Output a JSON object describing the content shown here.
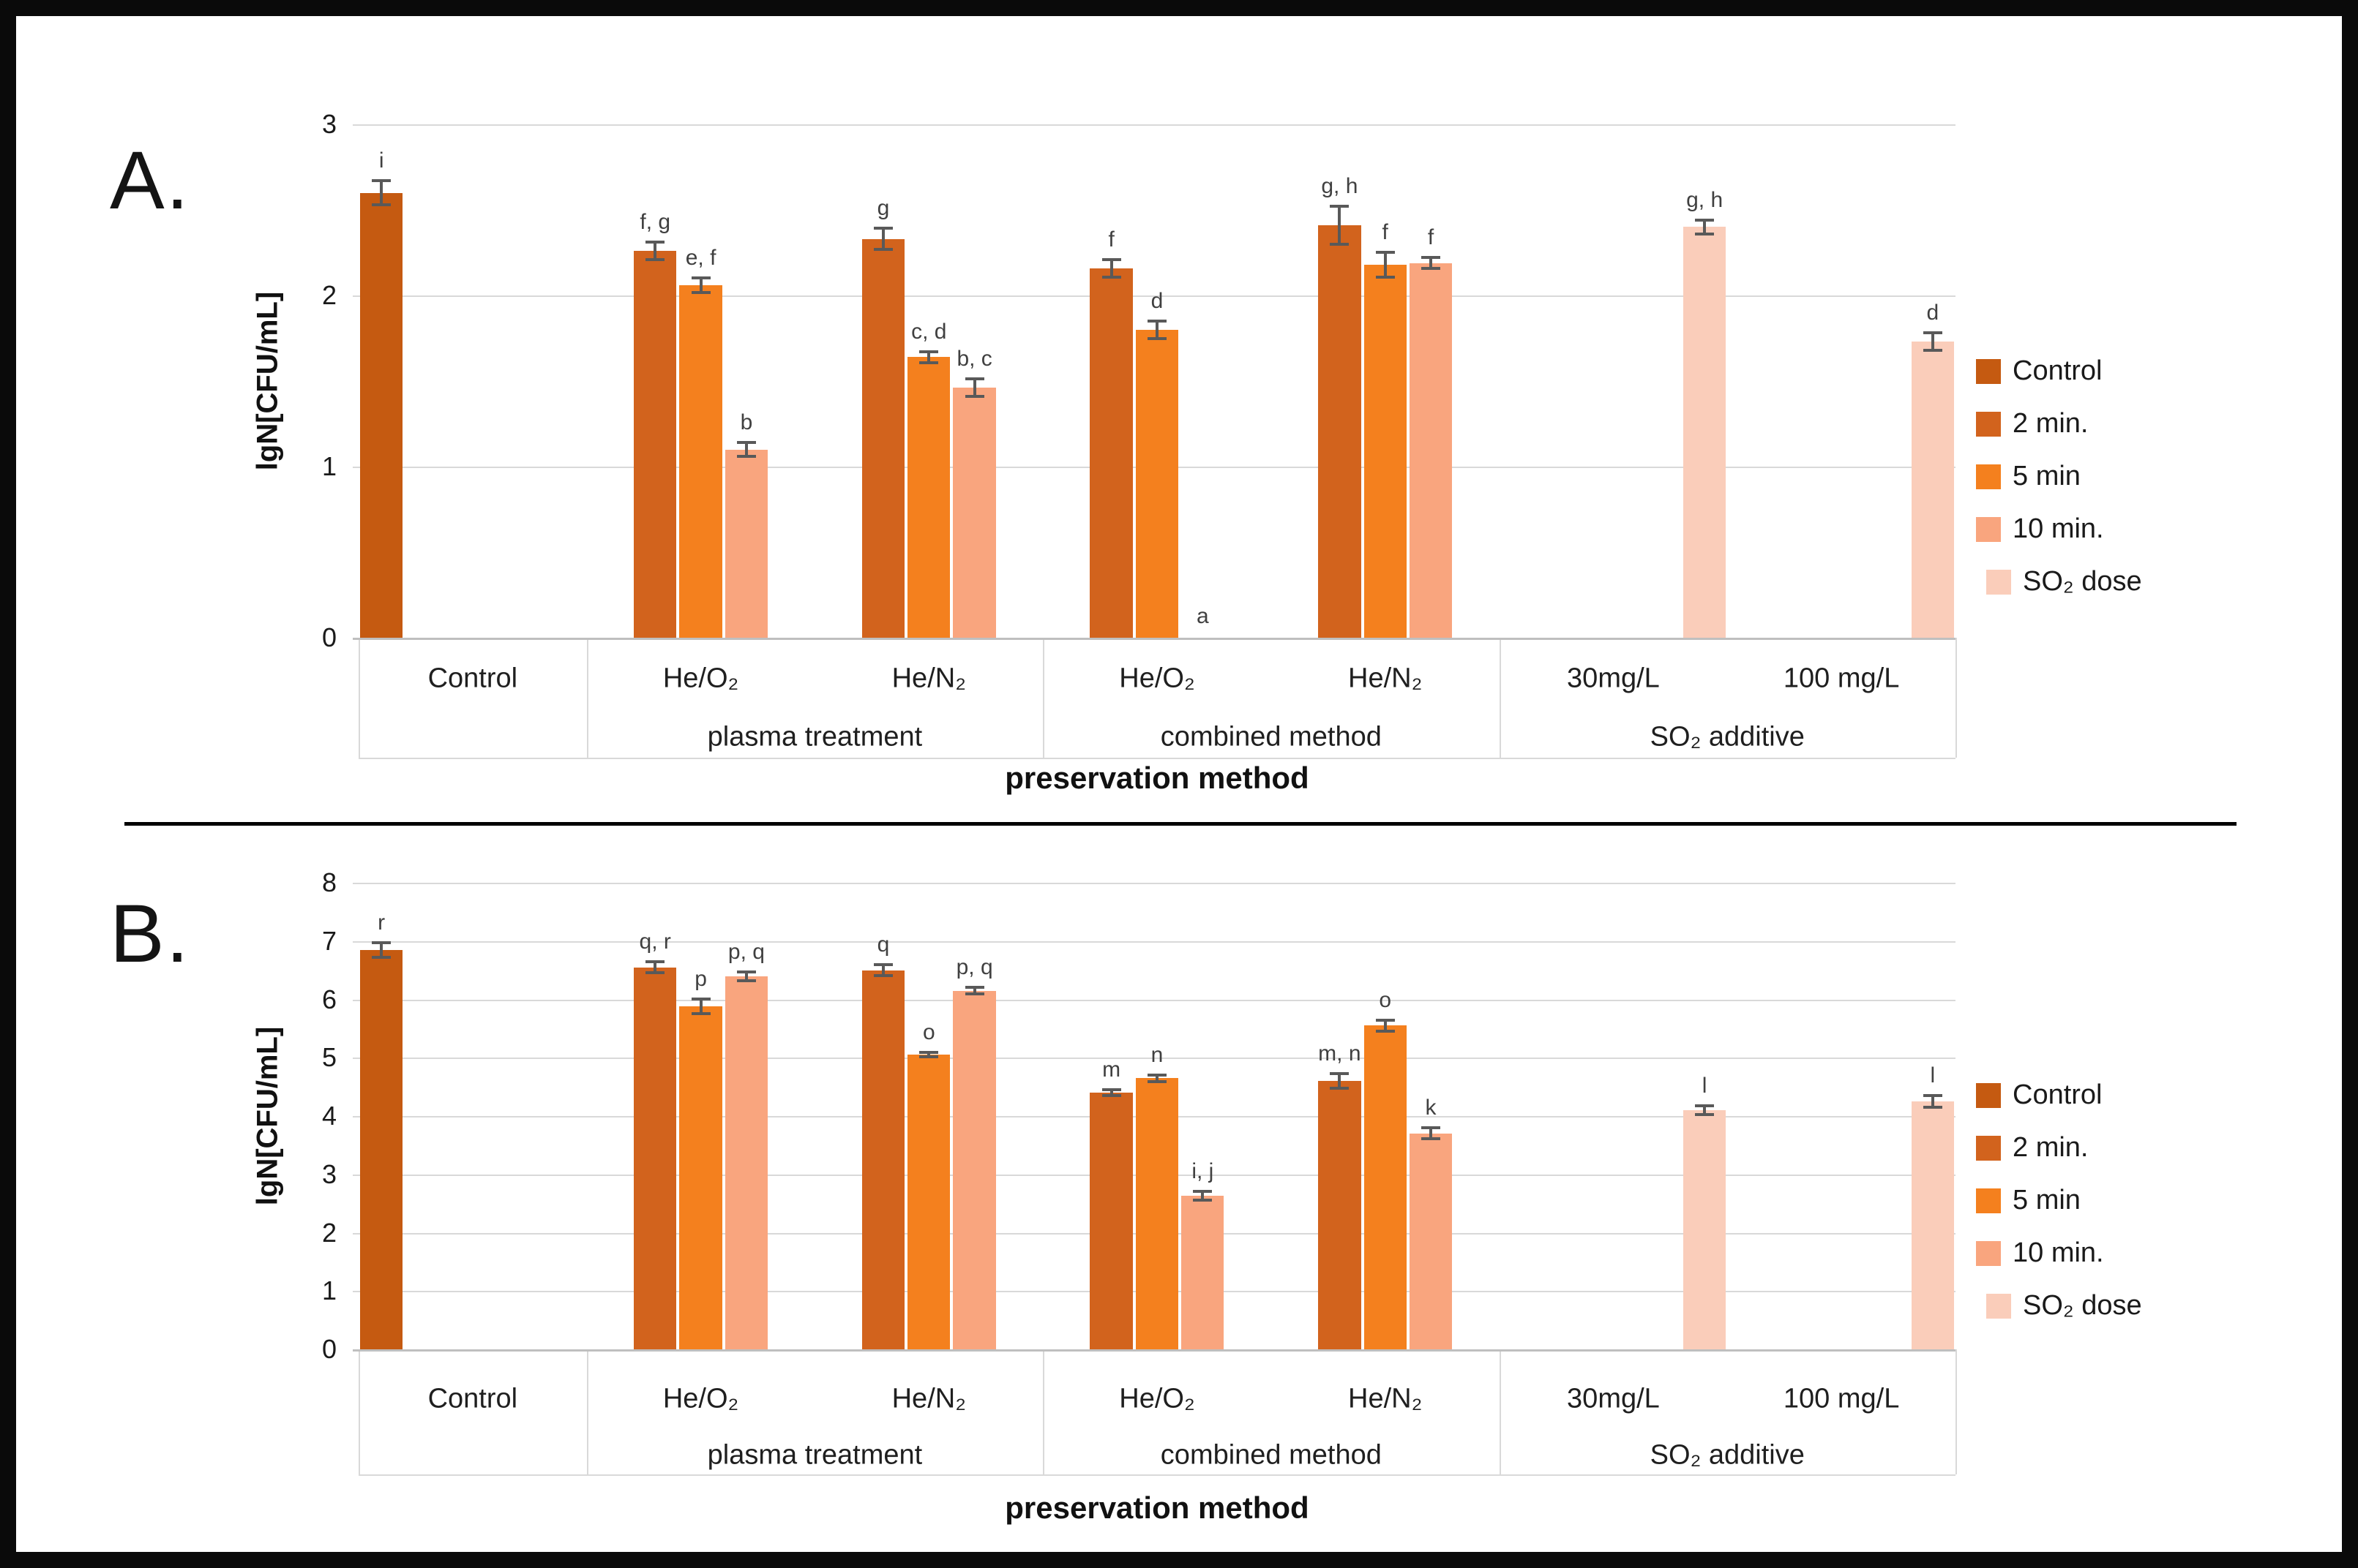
{
  "chart_data": [
    {
      "type": "bar",
      "panel_label": "A.",
      "ylabel": "lgN[CFU/mL]",
      "xlabel": "preservation method",
      "ylim": [
        0,
        3
      ],
      "yticks": [
        0,
        1,
        2,
        3
      ],
      "grid": true,
      "legend_position": "right",
      "series": [
        {
          "name": "Control",
          "color": "#C55A11"
        },
        {
          "name": "2 min.",
          "color": "#D2631D"
        },
        {
          "name": "5 min",
          "color": "#F4801E"
        },
        {
          "name": "10 min.",
          "color": "#F9A57E"
        },
        {
          "name": "SO₂ dose",
          "color": "#FACDBA"
        }
      ],
      "groups": [
        {
          "group_label": "",
          "categories": [
            {
              "label": "Control",
              "bars": [
                {
                  "series": 0,
                  "value": 2.6,
                  "err": 0.08,
                  "letter": "i"
                }
              ]
            }
          ]
        },
        {
          "group_label": "plasma treatment",
          "categories": [
            {
              "label": "He/O₂",
              "bars": [
                {
                  "series": 1,
                  "value": 2.26,
                  "err": 0.06,
                  "letter": "f, g"
                },
                {
                  "series": 2,
                  "value": 2.06,
                  "err": 0.05,
                  "letter": "e, f"
                },
                {
                  "series": 3,
                  "value": 1.1,
                  "err": 0.05,
                  "letter": "b"
                }
              ]
            },
            {
              "label": "He/N₂",
              "bars": [
                {
                  "series": 1,
                  "value": 2.33,
                  "err": 0.07,
                  "letter": "g"
                },
                {
                  "series": 2,
                  "value": 1.64,
                  "err": 0.04,
                  "letter": "c, d"
                },
                {
                  "series": 3,
                  "value": 1.46,
                  "err": 0.06,
                  "letter": "b, c"
                }
              ]
            }
          ]
        },
        {
          "group_label": "combined method",
          "categories": [
            {
              "label": "He/O₂",
              "bars": [
                {
                  "series": 1,
                  "value": 2.16,
                  "err": 0.06,
                  "letter": "f"
                },
                {
                  "series": 2,
                  "value": 1.8,
                  "err": 0.06,
                  "letter": "d"
                },
                {
                  "series": 3,
                  "value": 0,
                  "err": 0,
                  "letter": "a"
                }
              ]
            },
            {
              "label": "He/N₂",
              "bars": [
                {
                  "series": 1,
                  "value": 2.41,
                  "err": 0.12,
                  "letter": "g, h"
                },
                {
                  "series": 2,
                  "value": 2.18,
                  "err": 0.08,
                  "letter": "f"
                },
                {
                  "series": 3,
                  "value": 2.19,
                  "err": 0.04,
                  "letter": "f"
                }
              ]
            }
          ]
        },
        {
          "group_label": "SO₂ additive",
          "categories": [
            {
              "label": "30mg/L",
              "bars": [
                {
                  "series": 4,
                  "value": 2.4,
                  "err": 0.05,
                  "letter": "g, h"
                }
              ]
            },
            {
              "label": "100 mg/L",
              "bars": [
                {
                  "series": 4,
                  "value": 1.73,
                  "err": 0.06,
                  "letter": "d"
                }
              ]
            }
          ]
        }
      ]
    },
    {
      "type": "bar",
      "panel_label": "B.",
      "ylabel": "lgN[CFU/mL]",
      "xlabel": "preservation method",
      "ylim": [
        0,
        8
      ],
      "yticks": [
        0,
        1,
        2,
        3,
        4,
        5,
        6,
        7,
        8
      ],
      "grid": true,
      "legend_position": "right",
      "series": [
        {
          "name": "Control",
          "color": "#C55A11"
        },
        {
          "name": "2 min.",
          "color": "#D2631D"
        },
        {
          "name": "5 min",
          "color": "#F4801E"
        },
        {
          "name": "10 min.",
          "color": "#F9A57E"
        },
        {
          "name": "SO₂ dose",
          "color": "#FACDBA"
        }
      ],
      "groups": [
        {
          "group_label": "",
          "categories": [
            {
              "label": "Control",
              "bars": [
                {
                  "series": 0,
                  "value": 6.85,
                  "err": 0.15,
                  "letter": "r"
                }
              ]
            }
          ]
        },
        {
          "group_label": "plasma treatment",
          "categories": [
            {
              "label": "He/O₂",
              "bars": [
                {
                  "series": 1,
                  "value": 6.55,
                  "err": 0.12,
                  "letter": "q, r"
                },
                {
                  "series": 2,
                  "value": 5.88,
                  "err": 0.15,
                  "letter": "p"
                },
                {
                  "series": 3,
                  "value": 6.4,
                  "err": 0.1,
                  "letter": "p, q"
                }
              ]
            },
            {
              "label": "He/N₂",
              "bars": [
                {
                  "series": 1,
                  "value": 6.5,
                  "err": 0.12,
                  "letter": "q"
                },
                {
                  "series": 2,
                  "value": 5.05,
                  "err": 0.06,
                  "letter": "o"
                },
                {
                  "series": 3,
                  "value": 6.15,
                  "err": 0.08,
                  "letter": "p, q"
                }
              ]
            }
          ]
        },
        {
          "group_label": "combined method",
          "categories": [
            {
              "label": "He/O₂",
              "bars": [
                {
                  "series": 1,
                  "value": 4.4,
                  "err": 0.08,
                  "letter": "m"
                },
                {
                  "series": 2,
                  "value": 4.65,
                  "err": 0.08,
                  "letter": "n"
                },
                {
                  "series": 3,
                  "value": 2.63,
                  "err": 0.1,
                  "letter": "i, j"
                }
              ]
            },
            {
              "label": "He/N₂",
              "bars": [
                {
                  "series": 1,
                  "value": 4.6,
                  "err": 0.15,
                  "letter": "m, n"
                },
                {
                  "series": 2,
                  "value": 5.55,
                  "err": 0.12,
                  "letter": "o"
                },
                {
                  "series": 3,
                  "value": 3.7,
                  "err": 0.12,
                  "letter": "k"
                }
              ]
            }
          ]
        },
        {
          "group_label": "SO₂ additive",
          "categories": [
            {
              "label": "30mg/L",
              "bars": [
                {
                  "series": 4,
                  "value": 4.1,
                  "err": 0.1,
                  "letter": "l"
                }
              ]
            },
            {
              "label": "100 mg/L",
              "bars": [
                {
                  "series": 4,
                  "value": 4.25,
                  "err": 0.12,
                  "letter": "l"
                }
              ]
            }
          ]
        }
      ]
    }
  ]
}
